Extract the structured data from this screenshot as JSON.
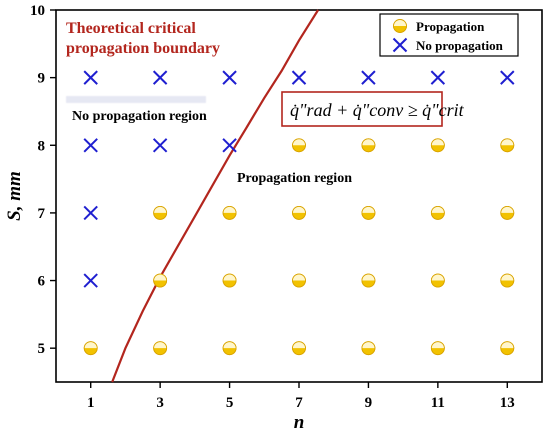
{
  "chart_data": {
    "type": "scatter",
    "xlabel": "n",
    "ylabel": "S, mm",
    "xlim": [
      0,
      14
    ],
    "ylim": [
      4.5,
      10
    ],
    "xticks": [
      1,
      3,
      5,
      7,
      9,
      11,
      13
    ],
    "yticks": [
      5,
      6,
      7,
      8,
      9,
      10
    ],
    "series": [
      {
        "name": "Propagation",
        "marker": "half-filled-circle",
        "color": "#f2c200",
        "points": [
          [
            1,
            5
          ],
          [
            3,
            5
          ],
          [
            5,
            5
          ],
          [
            7,
            5
          ],
          [
            9,
            5
          ],
          [
            11,
            5
          ],
          [
            13,
            5
          ],
          [
            3,
            6
          ],
          [
            5,
            6
          ],
          [
            7,
            6
          ],
          [
            9,
            6
          ],
          [
            11,
            6
          ],
          [
            13,
            6
          ],
          [
            3,
            7
          ],
          [
            5,
            7
          ],
          [
            7,
            7
          ],
          [
            9,
            7
          ],
          [
            11,
            7
          ],
          [
            13,
            7
          ],
          [
            7,
            8
          ],
          [
            9,
            8
          ],
          [
            11,
            8
          ],
          [
            13,
            8
          ]
        ]
      },
      {
        "name": "No propagation",
        "marker": "x",
        "color": "#1f1fd0",
        "points": [
          [
            1,
            6
          ],
          [
            1,
            7
          ],
          [
            1,
            8
          ],
          [
            3,
            8
          ],
          [
            5,
            8
          ],
          [
            1,
            9
          ],
          [
            3,
            9
          ],
          [
            5,
            9
          ],
          [
            7,
            9
          ],
          [
            9,
            9
          ],
          [
            11,
            9
          ],
          [
            13,
            9
          ]
        ]
      }
    ],
    "boundary": {
      "name": "Theoretical critical propagation boundary",
      "color": "#b3261e",
      "points": [
        [
          1.62,
          4.5
        ],
        [
          2.0,
          5.0
        ],
        [
          2.5,
          5.55
        ],
        [
          3.0,
          6.05
        ],
        [
          3.5,
          6.5
        ],
        [
          4.0,
          6.95
        ],
        [
          4.5,
          7.4
        ],
        [
          5.0,
          7.85
        ],
        [
          5.5,
          8.27
        ],
        [
          6.0,
          8.7
        ],
        [
          6.5,
          9.1
        ],
        [
          7.0,
          9.55
        ],
        [
          7.55,
          10.0
        ]
      ]
    },
    "annotations": {
      "boundary_title_line1": "Theoretical critical",
      "boundary_title_line2": "propagation boundary",
      "no_propagation_region": "No propagation region",
      "propagation_region": "Propagation region",
      "equation": "q̇\"rad + q̇\"conv ≥ q̇\"crit"
    },
    "legend": {
      "position": "top-right"
    },
    "colors": {
      "boundary": "#b3261e",
      "propagation": "#f2c200",
      "no_propagation": "#1f1fd0"
    }
  }
}
